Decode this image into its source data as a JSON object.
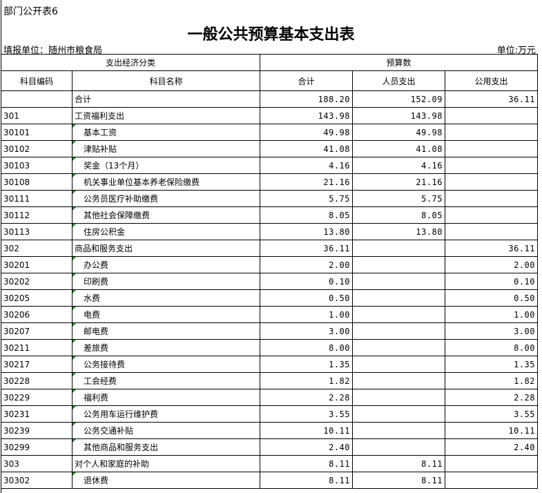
{
  "sheet_label": "部门公开表6",
  "title": "一般公共预算基本支出表",
  "unit_left": "填报单位：随州市粮食局",
  "unit_right": "单位:万元",
  "headers": {
    "group1": "支出经济分类",
    "group2": "预算数",
    "code": "科目编码",
    "name": "科目名称",
    "total": "合计",
    "personnel": "人员支出",
    "public": "公用支出"
  },
  "rows": [
    {
      "code": "",
      "name": "合计",
      "total": "188.20",
      "personnel": "152.09",
      "public": "36.11",
      "indent": false
    },
    {
      "code": "301",
      "name": "工资福利支出",
      "total": "143.98",
      "personnel": "143.98",
      "public": "",
      "indent": false
    },
    {
      "code": "30101",
      "name": "基本工资",
      "total": "49.98",
      "personnel": "49.98",
      "public": "",
      "indent": true
    },
    {
      "code": "30102",
      "name": "津贴补贴",
      "total": "41.08",
      "personnel": "41.08",
      "public": "",
      "indent": true
    },
    {
      "code": "30103",
      "name": "奖金（13个月）",
      "total": "4.16",
      "personnel": "4.16",
      "public": "",
      "indent": true
    },
    {
      "code": "30108",
      "name": "机关事业单位基本养老保险缴费",
      "total": "21.16",
      "personnel": "21.16",
      "public": "",
      "indent": true
    },
    {
      "code": "30111",
      "name": "公务员医疗补助缴费",
      "total": "5.75",
      "personnel": "5.75",
      "public": "",
      "indent": true
    },
    {
      "code": "30112",
      "name": "其他社会保障缴费",
      "total": "8.05",
      "personnel": "8.05",
      "public": "",
      "indent": true
    },
    {
      "code": "30113",
      "name": "住房公积金",
      "total": "13.80",
      "personnel": "13.80",
      "public": "",
      "indent": true
    },
    {
      "code": "302",
      "name": "商品和服务支出",
      "total": "36.11",
      "personnel": "",
      "public": "36.11",
      "indent": false
    },
    {
      "code": "30201",
      "name": "办公费",
      "total": "2.00",
      "personnel": "",
      "public": "2.00",
      "indent": true
    },
    {
      "code": "30202",
      "name": "印刷费",
      "total": "0.10",
      "personnel": "",
      "public": "0.10",
      "indent": true
    },
    {
      "code": "30205",
      "name": "水费",
      "total": "0.50",
      "personnel": "",
      "public": "0.50",
      "indent": true
    },
    {
      "code": "30206",
      "name": "电费",
      "total": "1.00",
      "personnel": "",
      "public": "1.00",
      "indent": true
    },
    {
      "code": "30207",
      "name": "邮电费",
      "total": "3.00",
      "personnel": "",
      "public": "3.00",
      "indent": true
    },
    {
      "code": "30211",
      "name": "差旅费",
      "total": "8.00",
      "personnel": "",
      "public": "8.00",
      "indent": true
    },
    {
      "code": "30217",
      "name": "公务接待费",
      "total": "1.35",
      "personnel": "",
      "public": "1.35",
      "indent": true
    },
    {
      "code": "30228",
      "name": "工会经费",
      "total": "1.82",
      "personnel": "",
      "public": "1.82",
      "indent": true
    },
    {
      "code": "30229",
      "name": "福利费",
      "total": "2.28",
      "personnel": "",
      "public": "2.28",
      "indent": true
    },
    {
      "code": "30231",
      "name": "公务用车运行维护费",
      "total": "3.55",
      "personnel": "",
      "public": "3.55",
      "indent": true
    },
    {
      "code": "30239",
      "name": "公务交通补贴",
      "total": "10.11",
      "personnel": "",
      "public": "10.11",
      "indent": true
    },
    {
      "code": "30299",
      "name": "其他商品和服务支出",
      "total": "2.40",
      "personnel": "",
      "public": "2.40",
      "indent": true
    },
    {
      "code": "303",
      "name": "对个人和家庭的补助",
      "total": "8.11",
      "personnel": "8.11",
      "public": "",
      "indent": false
    },
    {
      "code": "30302",
      "name": "退休费",
      "total": "8.11",
      "personnel": "8.11",
      "public": "",
      "indent": true
    }
  ]
}
